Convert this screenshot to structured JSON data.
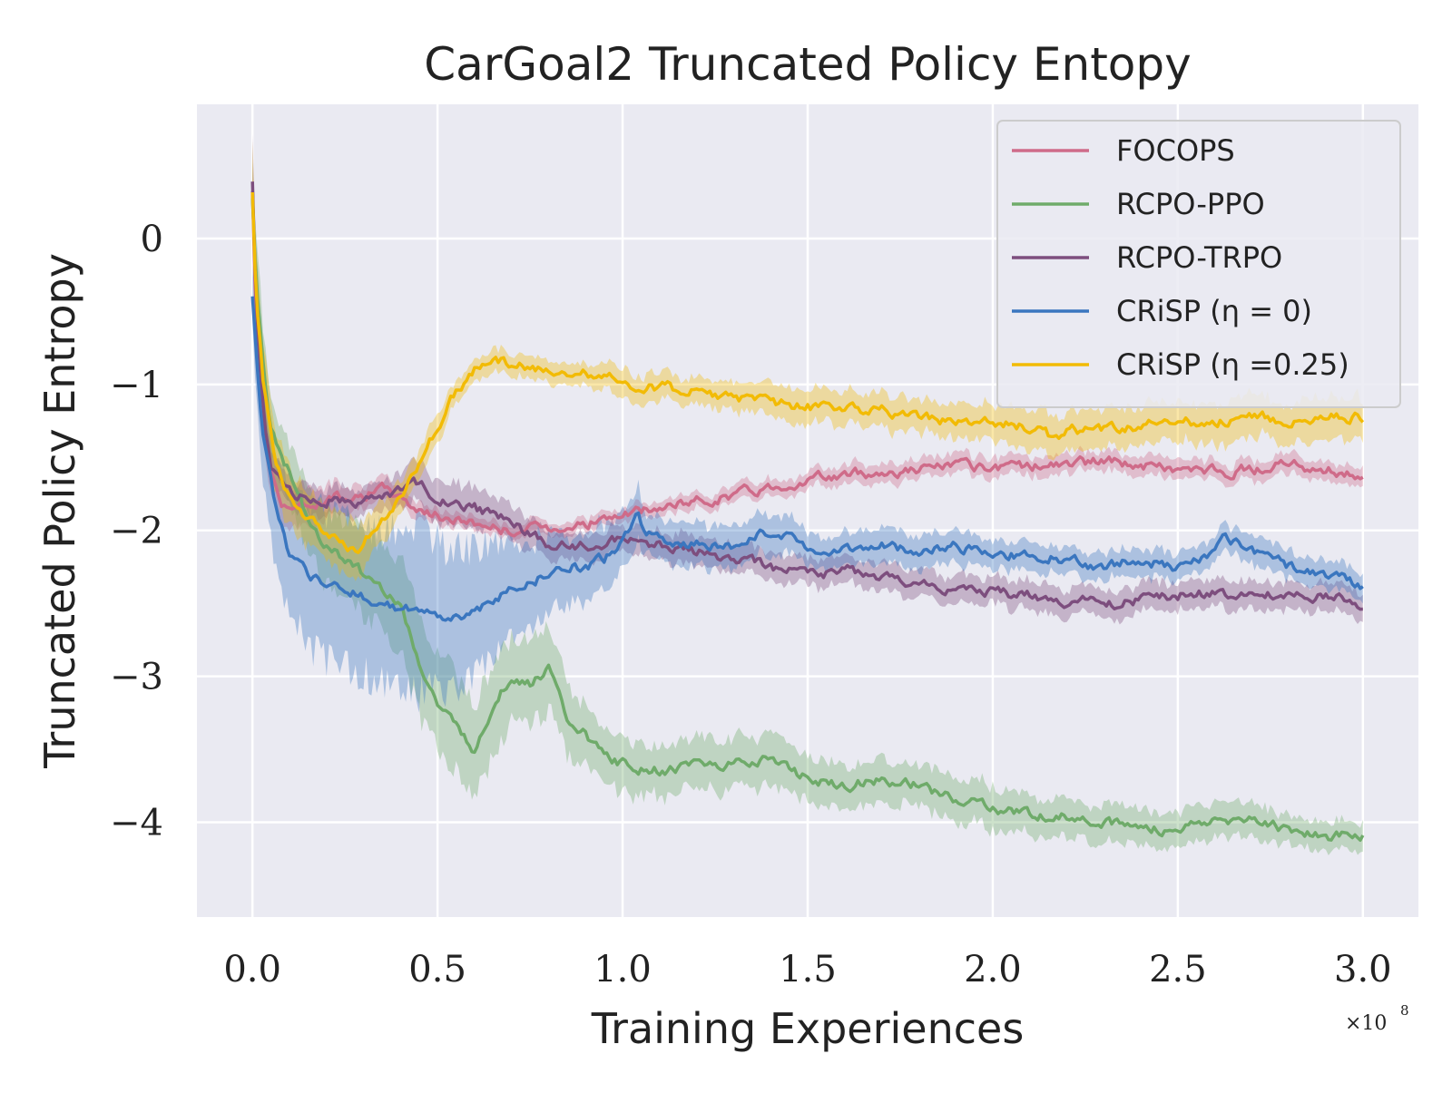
{
  "chart_data": {
    "type": "line",
    "title": "CarGoal2 Truncated Policy Entopy",
    "xlabel": "Training Experiences",
    "ylabel": "Truncated Policy Entropy",
    "x_exponent_label": "×10",
    "x_exponent_power": "8",
    "xlim": [
      -0.15,
      3.15
    ],
    "ylim": [
      -4.65,
      0.92
    ],
    "xticks": [
      0.0,
      0.5,
      1.0,
      1.5,
      2.0,
      2.5,
      3.0
    ],
    "xtick_labels": [
      "0.0",
      "0.5",
      "1.0",
      "1.5",
      "2.0",
      "2.5",
      "3.0"
    ],
    "yticks": [
      0,
      -1,
      -2,
      -3,
      -4
    ],
    "ytick_labels": [
      "0",
      "−1",
      "−2",
      "−3",
      "−4"
    ],
    "grid": true,
    "legend_position": "top-right",
    "x_units_note": "x values in units of 1e8 training experiences",
    "series": [
      {
        "name": "FOCOPS",
        "color": "#cf6b89",
        "x": [
          0.0,
          0.01,
          0.03,
          0.05,
          0.08,
          0.12,
          0.18,
          0.25,
          0.3,
          0.35,
          0.4,
          0.45,
          0.5,
          0.6,
          0.7,
          0.8,
          0.9,
          1.0,
          1.1,
          1.2,
          1.3,
          1.4,
          1.5,
          1.6,
          1.7,
          1.8,
          1.9,
          2.0,
          2.1,
          2.2,
          2.3,
          2.4,
          2.5,
          2.6,
          2.7,
          2.8,
          2.9,
          3.0
        ],
        "y": [
          0.3,
          -0.6,
          -1.2,
          -1.6,
          -1.8,
          -1.85,
          -1.8,
          -1.75,
          -1.75,
          -1.72,
          -1.78,
          -1.85,
          -1.9,
          -1.95,
          -2.0,
          -1.98,
          -1.95,
          -1.9,
          -1.85,
          -1.8,
          -1.75,
          -1.7,
          -1.65,
          -1.62,
          -1.6,
          -1.58,
          -1.55,
          -1.6,
          -1.55,
          -1.55,
          -1.52,
          -1.55,
          -1.58,
          -1.6,
          -1.58,
          -1.55,
          -1.58,
          -1.62
        ],
        "band": [
          0.25,
          0.3,
          0.25,
          0.2,
          0.15,
          0.15,
          0.12,
          0.1,
          0.08,
          0.08,
          0.07,
          0.06,
          0.05,
          0.05,
          0.05,
          0.05,
          0.05,
          0.05,
          0.05,
          0.06,
          0.06,
          0.06,
          0.06,
          0.07,
          0.07,
          0.07,
          0.07,
          0.07,
          0.07,
          0.07,
          0.07,
          0.07,
          0.07,
          0.07,
          0.07,
          0.07,
          0.07,
          0.07
        ]
      },
      {
        "name": "RCPO-PPO",
        "color": "#6fab6a",
        "x": [
          0.0,
          0.01,
          0.03,
          0.05,
          0.1,
          0.15,
          0.2,
          0.25,
          0.3,
          0.35,
          0.4,
          0.45,
          0.5,
          0.55,
          0.6,
          0.65,
          0.7,
          0.75,
          0.8,
          0.85,
          0.9,
          0.95,
          1.0,
          1.1,
          1.2,
          1.3,
          1.4,
          1.5,
          1.6,
          1.7,
          1.8,
          1.9,
          2.0,
          2.1,
          2.2,
          2.3,
          2.4,
          2.5,
          2.6,
          2.7,
          2.8,
          2.9,
          3.0
        ],
        "y": [
          0.3,
          -0.3,
          -0.9,
          -1.3,
          -1.6,
          -1.9,
          -2.1,
          -2.2,
          -2.3,
          -2.4,
          -2.5,
          -2.9,
          -3.2,
          -3.35,
          -3.5,
          -3.2,
          -3.0,
          -3.05,
          -2.95,
          -3.3,
          -3.4,
          -3.55,
          -3.6,
          -3.65,
          -3.6,
          -3.6,
          -3.55,
          -3.7,
          -3.75,
          -3.7,
          -3.75,
          -3.85,
          -3.9,
          -3.95,
          -3.95,
          -4.0,
          -4.05,
          -4.05,
          -4.0,
          -3.98,
          -4.05,
          -4.1,
          -4.1
        ],
        "band": [
          0.3,
          0.3,
          0.25,
          0.2,
          0.2,
          0.25,
          0.25,
          0.3,
          0.3,
          0.3,
          0.35,
          0.35,
          0.35,
          0.35,
          0.35,
          0.35,
          0.3,
          0.3,
          0.3,
          0.25,
          0.2,
          0.2,
          0.2,
          0.18,
          0.18,
          0.18,
          0.18,
          0.17,
          0.16,
          0.15,
          0.15,
          0.15,
          0.15,
          0.15,
          0.13,
          0.13,
          0.13,
          0.13,
          0.12,
          0.12,
          0.1,
          0.1,
          0.1
        ]
      },
      {
        "name": "RCPO-TRPO",
        "color": "#7d4e7e",
        "x": [
          0.0,
          0.01,
          0.03,
          0.05,
          0.08,
          0.12,
          0.18,
          0.25,
          0.3,
          0.35,
          0.4,
          0.43,
          0.5,
          0.6,
          0.7,
          0.8,
          0.9,
          1.0,
          1.1,
          1.2,
          1.3,
          1.4,
          1.5,
          1.6,
          1.7,
          1.8,
          1.9,
          2.0,
          2.1,
          2.2,
          2.3,
          2.4,
          2.5,
          2.6,
          2.7,
          2.8,
          2.9,
          3.0
        ],
        "y": [
          0.4,
          -0.5,
          -1.2,
          -1.6,
          -1.7,
          -1.75,
          -1.78,
          -1.8,
          -1.8,
          -1.78,
          -1.7,
          -1.65,
          -1.78,
          -1.85,
          -1.95,
          -2.1,
          -2.1,
          -2.05,
          -2.1,
          -2.15,
          -2.2,
          -2.25,
          -2.3,
          -2.28,
          -2.32,
          -2.35,
          -2.4,
          -2.42,
          -2.45,
          -2.48,
          -2.5,
          -2.48,
          -2.45,
          -2.42,
          -2.45,
          -2.45,
          -2.45,
          -2.5
        ],
        "band": [
          0.35,
          0.3,
          0.2,
          0.12,
          0.1,
          0.1,
          0.1,
          0.1,
          0.1,
          0.1,
          0.12,
          0.15,
          0.15,
          0.14,
          0.12,
          0.1,
          0.1,
          0.1,
          0.1,
          0.1,
          0.1,
          0.1,
          0.1,
          0.1,
          0.1,
          0.1,
          0.1,
          0.1,
          0.1,
          0.1,
          0.1,
          0.1,
          0.1,
          0.1,
          0.1,
          0.1,
          0.1,
          0.1
        ]
      },
      {
        "name": "CRiSP (η = 0)",
        "color": "#3a76bf",
        "x": [
          0.0,
          0.01,
          0.03,
          0.06,
          0.1,
          0.15,
          0.2,
          0.25,
          0.3,
          0.35,
          0.4,
          0.45,
          0.5,
          0.55,
          0.6,
          0.65,
          0.7,
          0.75,
          0.8,
          0.85,
          0.9,
          0.95,
          1.0,
          1.04,
          1.06,
          1.1,
          1.2,
          1.3,
          1.35,
          1.4,
          1.5,
          1.6,
          1.7,
          1.8,
          1.9,
          2.0,
          2.1,
          2.2,
          2.3,
          2.4,
          2.5,
          2.6,
          2.63,
          2.7,
          2.8,
          2.9,
          3.0
        ],
        "y": [
          -0.4,
          -0.8,
          -1.4,
          -1.8,
          -2.2,
          -2.3,
          -2.35,
          -2.4,
          -2.45,
          -2.5,
          -2.55,
          -2.55,
          -2.6,
          -2.6,
          -2.55,
          -2.5,
          -2.4,
          -2.35,
          -2.3,
          -2.25,
          -2.25,
          -2.2,
          -2.1,
          -1.9,
          -2.05,
          -2.05,
          -2.1,
          -2.1,
          -2.05,
          -2.0,
          -2.1,
          -2.15,
          -2.1,
          -2.15,
          -2.1,
          -2.2,
          -2.15,
          -2.2,
          -2.25,
          -2.2,
          -2.25,
          -2.15,
          -2.05,
          -2.15,
          -2.25,
          -2.3,
          -2.38
        ],
        "band": [
          0.2,
          0.3,
          0.35,
          0.4,
          0.45,
          0.5,
          0.55,
          0.55,
          0.55,
          0.55,
          0.55,
          0.6,
          0.55,
          0.5,
          0.45,
          0.4,
          0.35,
          0.3,
          0.3,
          0.25,
          0.25,
          0.25,
          0.2,
          0.2,
          0.15,
          0.15,
          0.15,
          0.15,
          0.15,
          0.15,
          0.12,
          0.12,
          0.12,
          0.12,
          0.12,
          0.1,
          0.1,
          0.1,
          0.1,
          0.1,
          0.1,
          0.1,
          0.1,
          0.1,
          0.1,
          0.1,
          0.1
        ]
      },
      {
        "name": "CRiSP (η =0.25)",
        "color": "#f2bb05",
        "x": [
          0.0,
          0.01,
          0.03,
          0.06,
          0.1,
          0.15,
          0.2,
          0.25,
          0.28,
          0.32,
          0.36,
          0.4,
          0.45,
          0.5,
          0.55,
          0.6,
          0.65,
          0.7,
          0.75,
          0.8,
          0.85,
          0.9,
          0.95,
          1.0,
          1.1,
          1.2,
          1.3,
          1.4,
          1.5,
          1.6,
          1.7,
          1.8,
          1.9,
          2.0,
          2.1,
          2.15,
          2.2,
          2.3,
          2.4,
          2.5,
          2.6,
          2.7,
          2.8,
          2.9,
          3.0
        ],
        "y": [
          0.3,
          -0.4,
          -1.0,
          -1.5,
          -1.8,
          -1.95,
          -2.0,
          -2.1,
          -2.15,
          -2.0,
          -1.9,
          -1.75,
          -1.55,
          -1.3,
          -1.05,
          -0.9,
          -0.85,
          -0.85,
          -0.9,
          -0.88,
          -0.9,
          -0.92,
          -0.95,
          -0.98,
          -1.02,
          -1.05,
          -1.1,
          -1.12,
          -1.15,
          -1.15,
          -1.18,
          -1.22,
          -1.25,
          -1.25,
          -1.3,
          -1.35,
          -1.32,
          -1.3,
          -1.28,
          -1.25,
          -1.25,
          -1.22,
          -1.25,
          -1.22,
          -1.22
        ],
        "band": [
          0.3,
          0.35,
          0.3,
          0.25,
          0.2,
          0.2,
          0.2,
          0.2,
          0.2,
          0.15,
          0.15,
          0.12,
          0.1,
          0.1,
          0.08,
          0.08,
          0.08,
          0.08,
          0.08,
          0.08,
          0.08,
          0.08,
          0.1,
          0.1,
          0.1,
          0.1,
          0.1,
          0.12,
          0.12,
          0.12,
          0.12,
          0.12,
          0.12,
          0.12,
          0.14,
          0.14,
          0.14,
          0.14,
          0.14,
          0.14,
          0.15,
          0.15,
          0.15,
          0.15,
          0.15
        ]
      }
    ]
  }
}
